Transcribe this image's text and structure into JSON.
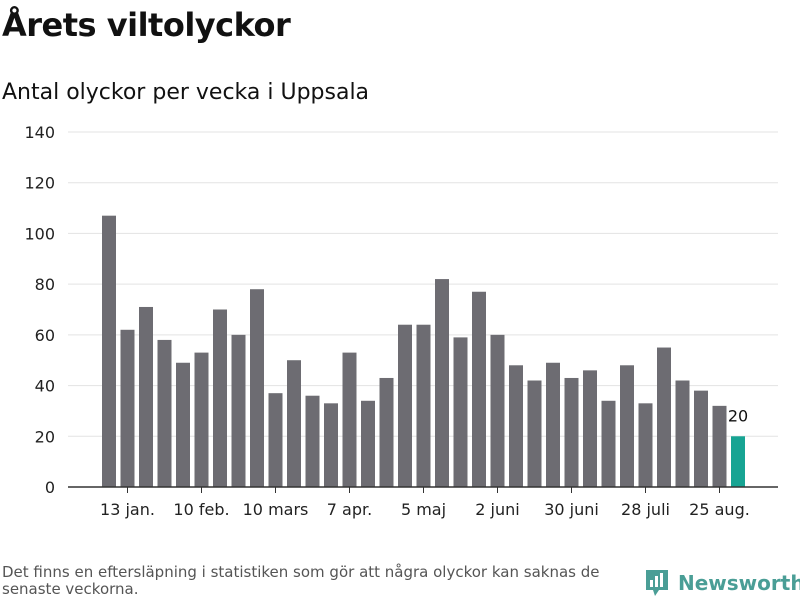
{
  "title": "Årets viltolyckor",
  "subtitle": "Antal olyckor per vecka i Uppsala",
  "footnote": "Det finns en eftersläpning i statistiken som gör att några olyckor kan saknas de senaste veckorna.",
  "brand": {
    "name": "Newsworthy",
    "icon": "newsworthy-logo-icon",
    "color": "#4a9e96"
  },
  "chart_data": {
    "type": "bar",
    "title": "Årets viltolyckor",
    "subtitle": "Antal olyckor per vecka i Uppsala",
    "xlabel": "",
    "ylabel": "",
    "ylim": [
      0,
      140
    ],
    "yticks": [
      0,
      20,
      40,
      60,
      80,
      100,
      120,
      140
    ],
    "grid": true,
    "bar_color": "#6d6c72",
    "highlight_color": "#17a493",
    "highlight_index": 34,
    "highlight_label": "20",
    "xtick_labels": [
      {
        "index": 1,
        "label": "13 jan."
      },
      {
        "index": 5,
        "label": "10 feb."
      },
      {
        "index": 9,
        "label": "10 mars"
      },
      {
        "index": 13,
        "label": "7 apr."
      },
      {
        "index": 17,
        "label": "5 maj"
      },
      {
        "index": 21,
        "label": "2 juni"
      },
      {
        "index": 25,
        "label": "30 juni"
      },
      {
        "index": 29,
        "label": "28 juli"
      },
      {
        "index": 33,
        "label": "25 aug."
      }
    ],
    "values": [
      107,
      62,
      71,
      58,
      49,
      53,
      70,
      60,
      78,
      37,
      50,
      36,
      33,
      53,
      34,
      43,
      64,
      64,
      82,
      59,
      77,
      60,
      48,
      42,
      49,
      43,
      46,
      34,
      48,
      33,
      55,
      42,
      38,
      32,
      20
    ]
  }
}
